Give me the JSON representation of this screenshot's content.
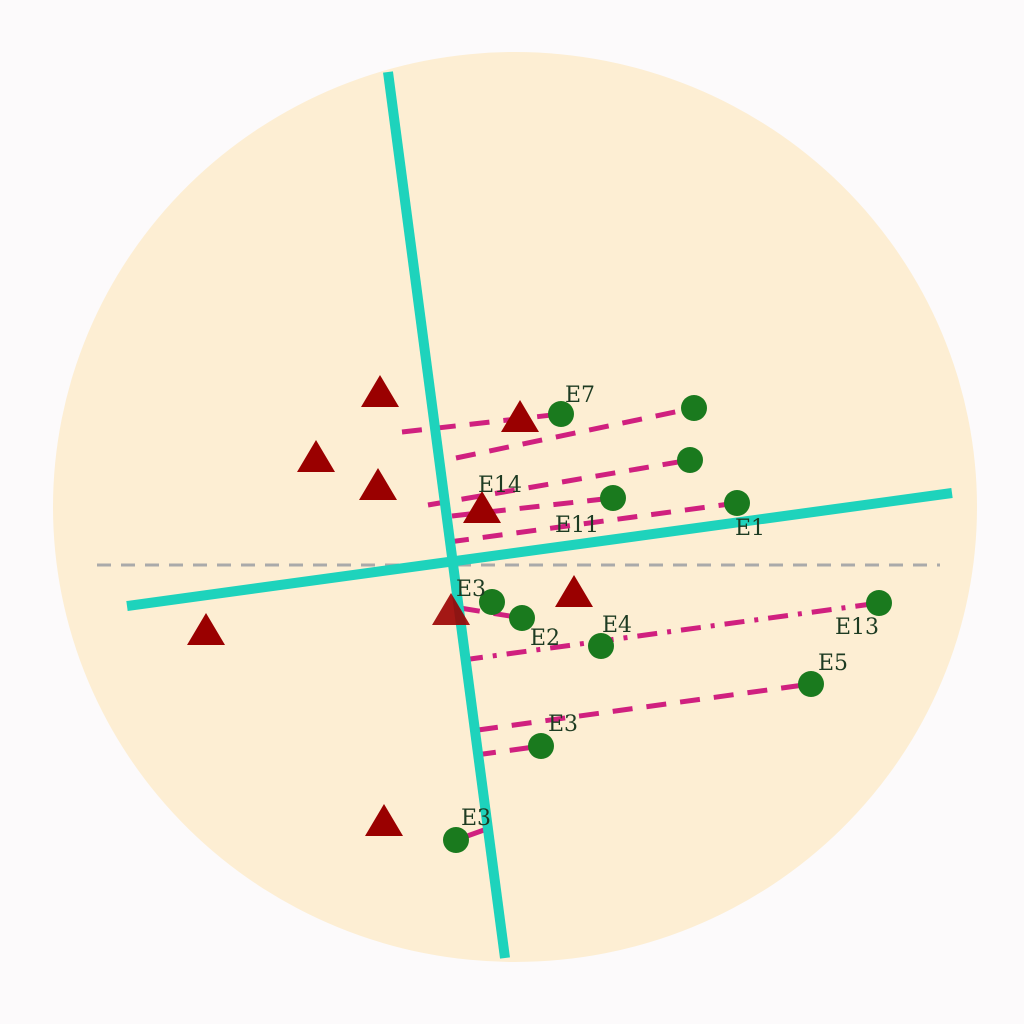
{
  "colors": {
    "disk": "#fdeed3",
    "axis": "#1ed3bc",
    "reference_line": "#aaaaaa",
    "connector": "#d0207f",
    "triangle": "#9a0000",
    "circle": "#1a7a1e",
    "label": "#1d3b22"
  },
  "markers": {
    "triangle_count": 9,
    "circle_count": 12
  },
  "labels": [
    "E7",
    "E14",
    "E11",
    "E1",
    "E3",
    "E2",
    "E4",
    "E13",
    "E5",
    "E3",
    "E3"
  ]
}
